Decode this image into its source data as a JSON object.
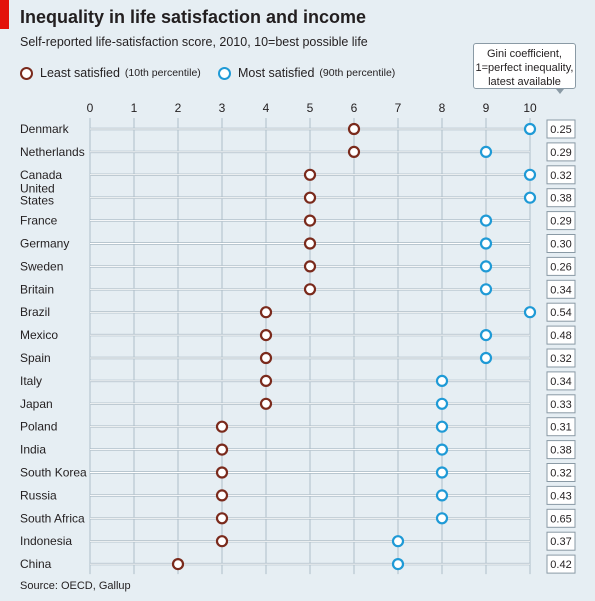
{
  "header": {
    "title": "Inequality in life satisfaction and income",
    "subtitle": "Self-reported life-satisfaction score, 2010, 10=best possible life"
  },
  "legend": {
    "least_label": "Least satisfied",
    "least_sub": "(10th percentile)",
    "most_label": "Most satisfied",
    "most_sub": "(90th percentile)"
  },
  "gini_note": {
    "line1": "Gini coefficient,",
    "line2": "1=perfect inequality,",
    "line3": "latest available"
  },
  "source": "Source: OECD, Gallup",
  "colors": {
    "least": "#7a2a1c",
    "most": "#1f9ad6",
    "background": "#e6eef3",
    "accent": "#e3120b"
  },
  "chart_data": {
    "type": "dot-range",
    "xlim": [
      0,
      10
    ],
    "x_ticks": [
      "0",
      "1",
      "2",
      "3",
      "4",
      "5",
      "6",
      "7",
      "8",
      "9",
      "10"
    ],
    "grid": true,
    "categories": [
      "Denmark",
      "Netherlands",
      "Canada",
      "United States",
      "France",
      "Germany",
      "Sweden",
      "Britain",
      "Brazil",
      "Mexico",
      "Spain",
      "Italy",
      "Japan",
      "Poland",
      "India",
      "South Korea",
      "Russia",
      "South Africa",
      "Indonesia",
      "China"
    ],
    "series": [
      {
        "name": "Least satisfied",
        "values": [
          6,
          6,
          5,
          5,
          5,
          5,
          5,
          5,
          4,
          4,
          4,
          4,
          4,
          3,
          3,
          3,
          3,
          3,
          3,
          2
        ]
      },
      {
        "name": "Most satisfied",
        "values": [
          10,
          9,
          10,
          10,
          9,
          9,
          9,
          9,
          10,
          9,
          9,
          8,
          8,
          8,
          8,
          8,
          8,
          8,
          7,
          7
        ]
      }
    ],
    "gini": [
      "0.25",
      "0.29",
      "0.32",
      "0.38",
      "0.29",
      "0.30",
      "0.26",
      "0.34",
      "0.54",
      "0.48",
      "0.32",
      "0.34",
      "0.33",
      "0.31",
      "0.38",
      "0.32",
      "0.43",
      "0.65",
      "0.37",
      "0.42"
    ]
  }
}
